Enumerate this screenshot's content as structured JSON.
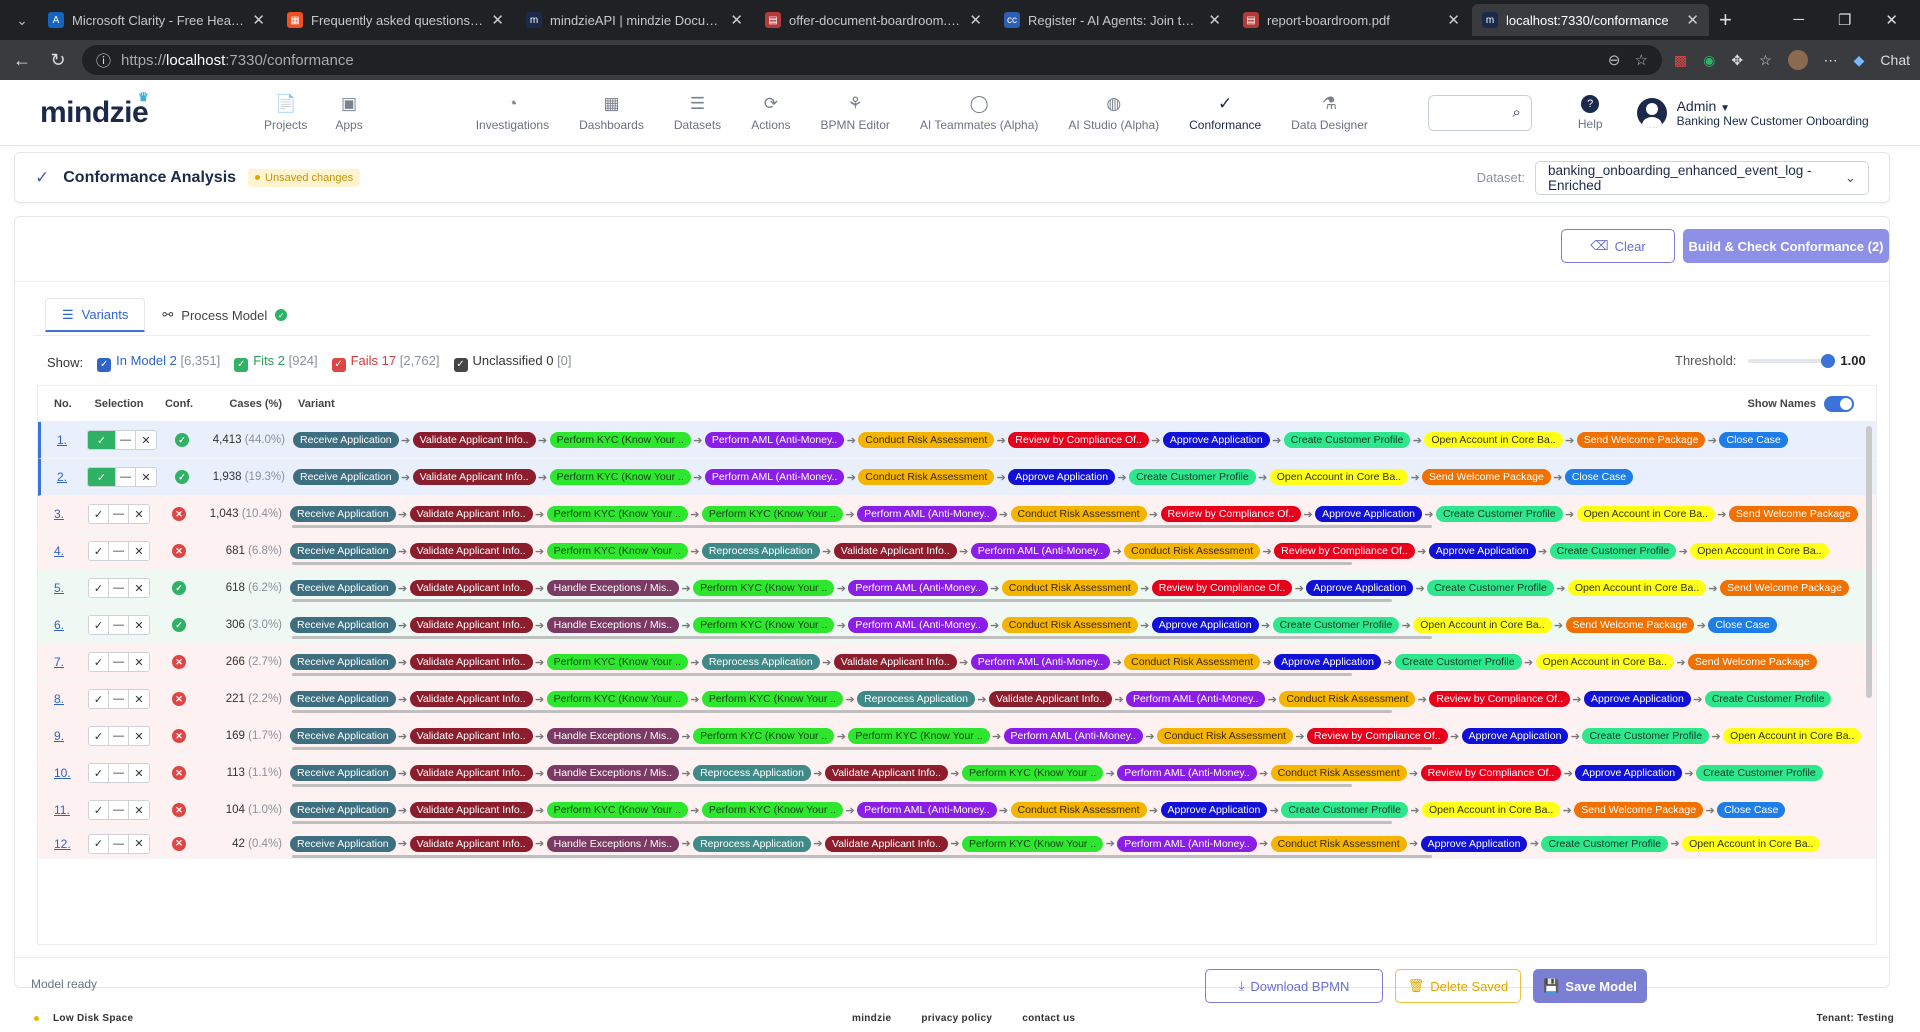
{
  "browser": {
    "tabs": [
      {
        "title": "Microsoft Clarity - Free Heatmaps",
        "fav": "#1565c0",
        "glyph": "A"
      },
      {
        "title": "Frequently asked questions | Micr",
        "fav": "#f25022",
        "glyph": "▦"
      },
      {
        "title": "mindzieAPI | mindzie Documentat",
        "fav": "#1b2a4a",
        "glyph": "m"
      },
      {
        "title": "offer-document-boardroom.pdf",
        "fav": "#b23a3a",
        "glyph": "▤"
      },
      {
        "title": "Register - AI Agents: Join the Club",
        "fav": "#2b5fb3",
        "glyph": "cc"
      },
      {
        "title": "report-boardroom.pdf",
        "fav": "#b23a3a",
        "glyph": "▤"
      },
      {
        "title": "localhost:7330/conformance",
        "fav": "#1b2a4a",
        "glyph": "m",
        "active": true
      }
    ],
    "url_prefix": "https://",
    "url_host": "localhost",
    "url_path": ":7330/conformance",
    "chat_label": "Chat"
  },
  "app": {
    "logo": "mindzie",
    "nav_left": [
      {
        "label": "Projects",
        "icon": "📄"
      },
      {
        "label": "Apps",
        "icon": "▣"
      }
    ],
    "nav_main": [
      {
        "label": "Investigations",
        "icon": "◔"
      },
      {
        "label": "Dashboards",
        "icon": "▦"
      },
      {
        "label": "Datasets",
        "icon": "☰"
      },
      {
        "label": "Actions",
        "icon": "⟳"
      },
      {
        "label": "BPMN Editor",
        "icon": "⚘"
      },
      {
        "label": "AI Teammates (Alpha)",
        "icon": "◯"
      },
      {
        "label": "AI Studio (Alpha)",
        "icon": "◍"
      },
      {
        "label": "Conformance",
        "icon": "✓",
        "active": true
      },
      {
        "label": "Data Designer",
        "icon": "⚗"
      }
    ],
    "help_label": "Help",
    "user_name": "Admin",
    "user_org": "Banking New Customer Onboarding"
  },
  "page": {
    "title": "Conformance Analysis",
    "badge": "Unsaved changes",
    "dataset_label": "Dataset:",
    "dataset_value": "banking_onboarding_enhanced_event_log - Enriched",
    "clear_label": "Clear",
    "build_label": "Build & Check Conformance (2)",
    "tab_variants": "Variants",
    "tab_model": "Process Model",
    "show_label": "Show:",
    "filters": [
      {
        "label": "In Model 2",
        "count": "[6,351]",
        "color": "#2e63c8",
        "textcolor": "#2e63c8"
      },
      {
        "label": "Fits 2",
        "count": "[924]",
        "color": "#2fb266",
        "textcolor": "#2a9a55"
      },
      {
        "label": "Fails 17",
        "count": "[2,762]",
        "color": "#e04545",
        "textcolor": "#d43a3a"
      },
      {
        "label": "Unclassified 0",
        "count": "[0]",
        "color": "#444",
        "textcolor": "#333"
      }
    ],
    "threshold_label": "Threshold:",
    "threshold_value": "1.00",
    "threshold_fraction": 1.0,
    "columns": {
      "no": "No.",
      "selection": "Selection",
      "conf": "Conf.",
      "cases": "Cases (%)",
      "variant": "Variant",
      "show_names": "Show Names"
    },
    "status": "Model ready",
    "download_label": "Download BPMN",
    "delete_label": "Delete Saved",
    "save_label": "Save Model"
  },
  "activity_colors": {
    "Receive Application": "#3d6f80",
    "Validate Applicant Info..": "#8b1d2c",
    "Perform KYC (Know Your ..": "#2ee62e",
    "Perform AML (Anti-Money..": "#8a1de6",
    "Conduct Risk Assessment": "#f4b400",
    "Review by Compliance Of..": "#e6001b",
    "Approve Application": "#1010d6",
    "Create Customer Profile": "#2ee68c",
    "Open Account in Core Ba..": "#ffff1a",
    "Send Welcome Package": "#f07000",
    "Close Case": "#1e7de6",
    "Handle Exceptions / Mis..": "#7a3a63",
    "Reprocess Application": "#3f8a88"
  },
  "activity_text": {
    "Perform KYC (Know Your ..": "#114411",
    "Conduct Risk Assessment": "#3a2a00",
    "Create Customer Profile": "#0d3b26",
    "Open Account in Core Ba..": "#333300"
  },
  "variants": [
    {
      "no": "1.",
      "sel": true,
      "conf": "ok",
      "cases": "4,413",
      "pct": "(44.0%)",
      "status": "sel",
      "acts": [
        "Receive Application",
        "Validate Applicant Info..",
        "Perform KYC (Know Your ..",
        "Perform AML (Anti-Money..",
        "Conduct Risk Assessment",
        "Review by Compliance Of..",
        "Approve Application",
        "Create Customer Profile",
        "Open Account in Core Ba..",
        "Send Welcome Package",
        "Close Case"
      ]
    },
    {
      "no": "2.",
      "sel": true,
      "conf": "ok",
      "cases": "1,938",
      "pct": "(19.3%)",
      "status": "sel",
      "acts": [
        "Receive Application",
        "Validate Applicant Info..",
        "Perform KYC (Know Your ..",
        "Perform AML (Anti-Money..",
        "Conduct Risk Assessment",
        "Approve Application",
        "Create Customer Profile",
        "Open Account in Core Ba..",
        "Send Welcome Package",
        "Close Case"
      ]
    },
    {
      "no": "3.",
      "sel": false,
      "conf": "bad",
      "cases": "1,043",
      "pct": "(10.4%)",
      "status": "fail",
      "acts": [
        "Receive Application",
        "Validate Applicant Info..",
        "Perform KYC (Know Your ..",
        "Perform KYC (Know Your ..",
        "Perform AML (Anti-Money..",
        "Conduct Risk Assessment",
        "Review by Compliance Of..",
        "Approve Application",
        "Create Customer Profile",
        "Open Account in Core Ba..",
        "Send Welcome Package"
      ]
    },
    {
      "no": "4.",
      "sel": false,
      "conf": "bad",
      "cases": "681",
      "pct": "(6.8%)",
      "status": "fail",
      "acts": [
        "Receive Application",
        "Validate Applicant Info..",
        "Perform KYC (Know Your ..",
        "Reprocess Application",
        "Validate Applicant Info..",
        "Perform AML (Anti-Money..",
        "Conduct Risk Assessment",
        "Review by Compliance Of..",
        "Approve Application",
        "Create Customer Profile",
        "Open Account in Core Ba.."
      ]
    },
    {
      "no": "5.",
      "sel": false,
      "conf": "ok",
      "cases": "618",
      "pct": "(6.2%)",
      "status": "fit",
      "acts": [
        "Receive Application",
        "Validate Applicant Info..",
        "Handle Exceptions / Mis..",
        "Perform KYC (Know Your ..",
        "Perform AML (Anti-Money..",
        "Conduct Risk Assessment",
        "Review by Compliance Of..",
        "Approve Application",
        "Create Customer Profile",
        "Open Account in Core Ba..",
        "Send Welcome Package"
      ]
    },
    {
      "no": "6.",
      "sel": false,
      "conf": "ok",
      "cases": "306",
      "pct": "(3.0%)",
      "status": "fit",
      "acts": [
        "Receive Application",
        "Validate Applicant Info..",
        "Handle Exceptions / Mis..",
        "Perform KYC (Know Your ..",
        "Perform AML (Anti-Money..",
        "Conduct Risk Assessment",
        "Approve Application",
        "Create Customer Profile",
        "Open Account in Core Ba..",
        "Send Welcome Package",
        "Close Case"
      ]
    },
    {
      "no": "7.",
      "sel": false,
      "conf": "bad",
      "cases": "266",
      "pct": "(2.7%)",
      "status": "fail",
      "acts": [
        "Receive Application",
        "Validate Applicant Info..",
        "Perform KYC (Know Your ..",
        "Reprocess Application",
        "Validate Applicant Info..",
        "Perform AML (Anti-Money..",
        "Conduct Risk Assessment",
        "Approve Application",
        "Create Customer Profile",
        "Open Account in Core Ba..",
        "Send Welcome Package"
      ]
    },
    {
      "no": "8.",
      "sel": false,
      "conf": "bad",
      "cases": "221",
      "pct": "(2.2%)",
      "status": "fail",
      "acts": [
        "Receive Application",
        "Validate Applicant Info..",
        "Perform KYC (Know Your ..",
        "Perform KYC (Know Your ..",
        "Reprocess Application",
        "Validate Applicant Info..",
        "Perform AML (Anti-Money..",
        "Conduct Risk Assessment",
        "Review by Compliance Of..",
        "Approve Application",
        "Create Customer Profile"
      ]
    },
    {
      "no": "9.",
      "sel": false,
      "conf": "bad",
      "cases": "169",
      "pct": "(1.7%)",
      "status": "fail",
      "acts": [
        "Receive Application",
        "Validate Applicant Info..",
        "Handle Exceptions / Mis..",
        "Perform KYC (Know Your ..",
        "Perform KYC (Know Your ..",
        "Perform AML (Anti-Money..",
        "Conduct Risk Assessment",
        "Review by Compliance Of..",
        "Approve Application",
        "Create Customer Profile",
        "Open Account in Core Ba.."
      ]
    },
    {
      "no": "10.",
      "sel": false,
      "conf": "bad",
      "cases": "113",
      "pct": "(1.1%)",
      "status": "fail",
      "acts": [
        "Receive Application",
        "Validate Applicant Info..",
        "Handle Exceptions / Mis..",
        "Reprocess Application",
        "Validate Applicant Info..",
        "Perform KYC (Know Your ..",
        "Perform AML (Anti-Money..",
        "Conduct Risk Assessment",
        "Review by Compliance Of..",
        "Approve Application",
        "Create Customer Profile"
      ]
    },
    {
      "no": "11.",
      "sel": false,
      "conf": "bad",
      "cases": "104",
      "pct": "(1.0%)",
      "status": "fail",
      "acts": [
        "Receive Application",
        "Validate Applicant Info..",
        "Perform KYC (Know Your ..",
        "Perform KYC (Know Your ..",
        "Perform AML (Anti-Money..",
        "Conduct Risk Assessment",
        "Approve Application",
        "Create Customer Profile",
        "Open Account in Core Ba..",
        "Send Welcome Package",
        "Close Case"
      ]
    },
    {
      "no": "12.",
      "sel": false,
      "conf": "bad",
      "cases": "42",
      "pct": "(0.4%)",
      "status": "fail",
      "acts": [
        "Receive Application",
        "Validate Applicant Info..",
        "Handle Exceptions / Mis..",
        "Reprocess Application",
        "Validate Applicant Info..",
        "Perform KYC (Know Your ..",
        "Perform AML (Anti-Money..",
        "Conduct Risk Assessment",
        "Approve Application",
        "Create Customer Profile",
        "Open Account in Core Ba.."
      ]
    }
  ],
  "footer": {
    "warning": "Low Disk Space",
    "links": [
      "mindzie",
      "privacy policy",
      "contact us"
    ],
    "tenant": "Tenant: Testing"
  }
}
